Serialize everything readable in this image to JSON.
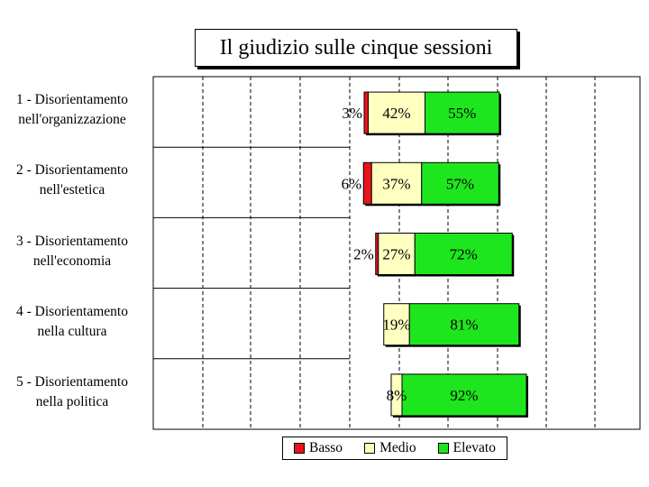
{
  "chart_data": {
    "type": "bar",
    "orientation": "horizontal",
    "stacked": "diverging",
    "title": "Il giudizio sulle cinque sessioni",
    "categories": [
      [
        "1 - Disorientamento",
        "nell'organizzazione"
      ],
      [
        "2 - Disorientamento",
        "nell'estetica"
      ],
      [
        "3 - Disorientamento",
        "nell'economia"
      ],
      [
        "4 - Disorientamento",
        "nella cultura"
      ],
      [
        "5 - Disorientamento",
        "nella politica"
      ]
    ],
    "series": [
      {
        "name": "Basso",
        "color": "#e8141c",
        "values": [
          3,
          6,
          2,
          0,
          0
        ]
      },
      {
        "name": "Medio",
        "color": "#ffffc0",
        "values": [
          42,
          37,
          27,
          19,
          8
        ]
      },
      {
        "name": "Elevato",
        "color": "#1ee61e",
        "values": [
          55,
          57,
          72,
          81,
          92
        ]
      }
    ],
    "value_labels": [
      [
        "3%",
        "42%",
        "55%"
      ],
      [
        "6%",
        "37%",
        "57%"
      ],
      [
        "2%",
        "27%",
        "72%"
      ],
      [
        "",
        "19%",
        "81%"
      ],
      [
        "",
        "8%",
        "92%"
      ]
    ],
    "grid": true,
    "legend_position": "bottom"
  }
}
